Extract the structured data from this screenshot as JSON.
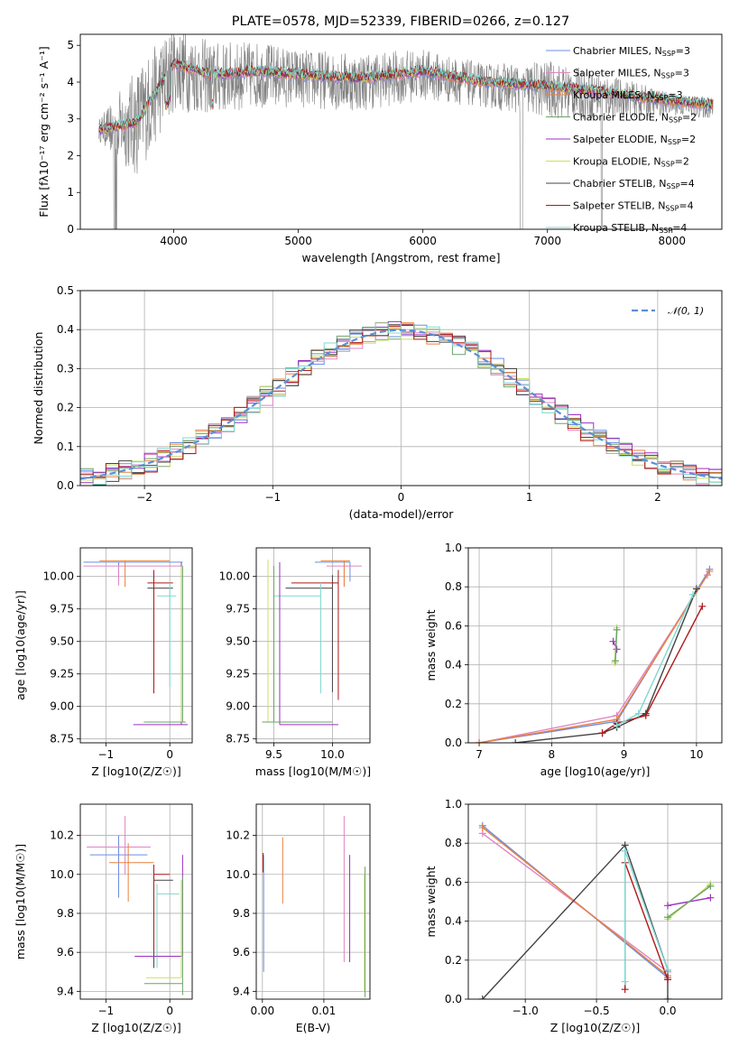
{
  "figure_title": "PLATE=0578, MJD=52339, FIBERID=0266, z=0.127",
  "colors": {
    "Chabrier MILES": "#6b8de3",
    "Salpeter MILES": "#e085c2",
    "Kroupa MILES": "#e8823c",
    "Chabrier ELODIE": "#6aa36a",
    "Salpeter ELODIE": "#9b30c0",
    "Kroupa ELODIE": "#c9e060",
    "Chabrier STELIB": "#444444",
    "Salpeter STELIB": "#b01818",
    "Kroupa STELIB": "#7fd8d0",
    "data": "#808080",
    "gauss": "#5b8fd6"
  },
  "chart_data": [
    {
      "type": "line",
      "id": "spectrum",
      "xlabel": "wavelength [Angstrom, rest frame]",
      "ylabel": "Flux [fλ10⁻¹⁷ erg cm⁻² s⁻¹ A⁻¹]",
      "xlim": [
        3250,
        8400
      ],
      "ylim": [
        0,
        5.3
      ],
      "xticks": [
        "4000",
        "5000",
        "6000",
        "7000",
        "8000"
      ],
      "yticks": [
        "0",
        "1",
        "2",
        "3",
        "4",
        "5"
      ],
      "legend": [
        "Chabrier MILES, NSSP=3",
        "Salpeter MILES, NSSP=3",
        "Kroupa MILES, NSSP=3",
        "Chabrier ELODIE, NSSP=2",
        "Salpeter ELODIE, NSSP=2",
        "Kroupa ELODIE, NSSP=2",
        "Chabrier STELIB, NSSP=4",
        "Salpeter STELIB, NSSP=4",
        "Kroupa STELIB, NSSP=4"
      ],
      "legend_placement": "upper right",
      "model_continuum": {
        "x": [
          3400,
          3700,
          4000,
          4300,
          4700,
          5000,
          5500,
          6000,
          6500,
          7000,
          7500,
          8000,
          8300
        ],
        "y": [
          2.7,
          2.9,
          4.5,
          4.2,
          4.3,
          4.2,
          4.1,
          4.3,
          4.0,
          3.9,
          3.7,
          3.5,
          3.4
        ]
      },
      "data_spectrum": {
        "x": [
          3400,
          3700,
          4000,
          4300,
          4700,
          5000,
          5500,
          6000,
          6500,
          7000,
          7500,
          8000,
          8300
        ],
        "y": [
          2.7,
          2.9,
          4.4,
          4.1,
          4.2,
          4.1,
          4.0,
          4.2,
          3.9,
          3.8,
          3.6,
          3.4,
          3.3
        ],
        "noise": [
          0.3,
          1.5,
          1.2,
          1.0,
          0.9,
          0.8,
          0.8,
          0.7,
          0.6,
          0.8,
          0.6,
          0.3,
          0.3
        ]
      }
    },
    {
      "type": "line",
      "id": "residuals",
      "xlabel": "(data-model)/error",
      "ylabel": "Normed distribution",
      "xlim": [
        -2.5,
        2.5
      ],
      "ylim": [
        0,
        0.5
      ],
      "xticks": [
        "−2",
        "−1",
        "0",
        "1",
        "2"
      ],
      "yticks": [
        "0.0",
        "0.1",
        "0.2",
        "0.3",
        "0.4",
        "0.5"
      ],
      "grid": true,
      "legend": [
        "𝒩(0, 1)"
      ],
      "legend_placement": "upper right",
      "series": [
        {
          "name": "𝒩(0, 1)",
          "mean": 0,
          "sigma": 1
        }
      ]
    },
    {
      "type": "scatter",
      "id": "age-vs-Z",
      "xlabel": "Z [log10(Z/Z☉)]",
      "ylabel": "age  [log10(age/yr)]",
      "xlim": [
        -1.4,
        0.35
      ],
      "ylim": [
        8.72,
        10.22
      ],
      "xticks": [
        "−1",
        "0"
      ],
      "yticks": [
        "8.75",
        "9.00",
        "9.25",
        "9.50",
        "9.75",
        "10.00"
      ],
      "grid": true,
      "points": [
        {
          "model": "Chabrier MILES",
          "x": -0.8,
          "y": 10.11,
          "xerr": [
            0.55,
            1.0
          ],
          "yerr": [
            0.15,
            0.0
          ]
        },
        {
          "model": "Salpeter MILES",
          "x": -0.8,
          "y": 10.08,
          "xerr": [
            0.55,
            1.0
          ],
          "yerr": [
            0.15,
            0.0
          ]
        },
        {
          "model": "Kroupa MILES",
          "x": -0.7,
          "y": 10.12,
          "xerr": [
            0.4,
            0.7
          ],
          "yerr": [
            0.2,
            0.0
          ]
        },
        {
          "model": "Chabrier STELIB",
          "x": -0.25,
          "y": 9.91,
          "xerr": [
            0.1,
            0.3
          ],
          "yerr": [
            0.8,
            0.1
          ]
        },
        {
          "model": "Salpeter STELIB",
          "x": -0.25,
          "y": 9.95,
          "xerr": [
            0.1,
            0.3
          ],
          "yerr": [
            0.85,
            0.1
          ]
        },
        {
          "model": "Kroupa STELIB",
          "x": 0.0,
          "y": 9.85,
          "xerr": [
            0.2,
            0.1
          ],
          "yerr": [
            0.7,
            0.1
          ]
        },
        {
          "model": "Salpeter ELODIE",
          "x": 0.18,
          "y": 8.86,
          "xerr": [
            0.75,
            0.1
          ],
          "yerr": [
            0.0,
            1.25
          ]
        },
        {
          "model": "Kroupa ELODIE",
          "x": 0.18,
          "y": 8.88,
          "xerr": [
            0.6,
            0.05
          ],
          "yerr": [
            0.0,
            1.2
          ]
        },
        {
          "model": "Chabrier ELODIE",
          "x": 0.2,
          "y": 8.88,
          "xerr": [
            0.6,
            0.05
          ],
          "yerr": [
            0.0,
            1.2
          ]
        }
      ]
    },
    {
      "type": "scatter",
      "id": "age-vs-mass",
      "xlabel": "mass [log10(M/M☉)]",
      "ylabel": "",
      "xlim": [
        9.35,
        10.32
      ],
      "ylim": [
        8.72,
        10.22
      ],
      "xticks": [
        "9.5",
        "10.0"
      ],
      "yticks": [
        "8.75",
        "9.00",
        "9.25",
        "9.50",
        "9.75",
        "10.00"
      ],
      "grid": true,
      "points": [
        {
          "model": "Chabrier MILES",
          "x": 10.15,
          "y": 10.11,
          "xerr": [
            0.3,
            0.0
          ],
          "yerr": [
            0.15,
            0.0
          ]
        },
        {
          "model": "Salpeter MILES",
          "x": 10.1,
          "y": 10.08,
          "xerr": [
            0.15,
            0.15
          ],
          "yerr": [
            0.15,
            0.0
          ]
        },
        {
          "model": "Kroupa MILES",
          "x": 10.1,
          "y": 10.12,
          "xerr": [
            0.2,
            0.05
          ],
          "yerr": [
            0.2,
            0.0
          ]
        },
        {
          "model": "Chabrier STELIB",
          "x": 10.0,
          "y": 9.91,
          "xerr": [
            0.4,
            0.0
          ],
          "yerr": [
            0.8,
            0.1
          ]
        },
        {
          "model": "Salpeter STELIB",
          "x": 10.05,
          "y": 9.95,
          "xerr": [
            0.4,
            0.0
          ],
          "yerr": [
            0.9,
            0.1
          ]
        },
        {
          "model": "Kroupa STELIB",
          "x": 9.9,
          "y": 9.85,
          "xerr": [
            0.4,
            0.0
          ],
          "yerr": [
            0.75,
            0.1
          ]
        },
        {
          "model": "Salpeter ELODIE",
          "x": 9.55,
          "y": 8.86,
          "xerr": [
            0.0,
            0.5
          ],
          "yerr": [
            0.0,
            1.25
          ]
        },
        {
          "model": "Kroupa ELODIE",
          "x": 9.45,
          "y": 8.88,
          "xerr": [
            0.05,
            0.5
          ],
          "yerr": [
            0.0,
            1.25
          ]
        },
        {
          "model": "Chabrier ELODIE",
          "x": 9.5,
          "y": 8.88,
          "xerr": [
            0.1,
            0.5
          ],
          "yerr": [
            0.0,
            1.2
          ]
        }
      ]
    },
    {
      "type": "line",
      "id": "massweight-vs-age",
      "xlabel": "age  [log10(age/yr)]",
      "ylabel": "mass weight",
      "xlim": [
        6.85,
        10.35
      ],
      "ylim": [
        0,
        1.0
      ],
      "xticks": [
        "7",
        "8",
        "9",
        "10"
      ],
      "yticks": [
        "0.0",
        "0.2",
        "0.4",
        "0.6",
        "0.8",
        "1.0"
      ],
      "grid": true,
      "series": [
        {
          "model": "Chabrier MILES",
          "x": [
            7.0,
            8.9,
            10.18
          ],
          "y": [
            0.0,
            0.11,
            0.89
          ]
        },
        {
          "model": "Salpeter MILES",
          "x": [
            7.0,
            8.9,
            10.15
          ],
          "y": [
            0.0,
            0.14,
            0.86
          ]
        },
        {
          "model": "Kroupa MILES",
          "x": [
            7.0,
            8.9,
            10.18
          ],
          "y": [
            0.0,
            0.12,
            0.88
          ]
        },
        {
          "model": "Chabrier STELIB",
          "x": [
            7.5,
            8.7,
            8.9,
            9.3,
            10.0
          ],
          "y": [
            0.0,
            0.05,
            0.08,
            0.15,
            0.79
          ]
        },
        {
          "model": "Salpeter STELIB",
          "x": [
            8.7,
            8.9,
            9.3,
            10.08
          ],
          "y": [
            0.05,
            0.1,
            0.14,
            0.7
          ]
        },
        {
          "model": "Kroupa STELIB",
          "x": [
            8.9,
            9.2,
            9.95
          ],
          "y": [
            0.09,
            0.15,
            0.76
          ]
        },
        {
          "model": "Salpeter ELODIE",
          "x": [
            8.85,
            8.9
          ],
          "y": [
            0.52,
            0.48
          ]
        },
        {
          "model": "Kroupa ELODIE",
          "x": [
            8.87,
            8.9
          ],
          "y": [
            0.41,
            0.59
          ]
        },
        {
          "model": "Chabrier ELODIE",
          "x": [
            8.88,
            8.9
          ],
          "y": [
            0.42,
            0.58
          ]
        }
      ]
    },
    {
      "type": "scatter",
      "id": "mass-vs-Z",
      "xlabel": "Z [log10(Z/Z☉)]",
      "ylabel": "mass [log10(M/M☉)]",
      "xlim": [
        -1.4,
        0.35
      ],
      "ylim": [
        9.36,
        10.36
      ],
      "xticks": [
        "−1",
        "0"
      ],
      "yticks": [
        "9.4",
        "9.6",
        "9.8",
        "10.0",
        "10.2"
      ],
      "grid": true,
      "points": [
        {
          "model": "Chabrier MILES",
          "x": -0.8,
          "y": 10.1,
          "xerr": [
            0.45,
            0.45
          ],
          "yerr": [
            0.22,
            0.1
          ]
        },
        {
          "model": "Salpeter MILES",
          "x": -0.7,
          "y": 10.14,
          "xerr": [
            0.6,
            0.4
          ],
          "yerr": [
            0.14,
            0.16
          ]
        },
        {
          "model": "Kroupa MILES",
          "x": -0.65,
          "y": 10.06,
          "xerr": [
            0.3,
            0.4
          ],
          "yerr": [
            0.2,
            0.1
          ]
        },
        {
          "model": "Chabrier STELIB",
          "x": -0.25,
          "y": 9.97,
          "xerr": [
            0.0,
            0.3
          ],
          "yerr": [
            0.45,
            0.05
          ]
        },
        {
          "model": "Salpeter STELIB",
          "x": -0.25,
          "y": 10.0,
          "xerr": [
            0.0,
            0.25
          ],
          "yerr": [
            0.4,
            0.05
          ]
        },
        {
          "model": "Kroupa STELIB",
          "x": -0.2,
          "y": 9.9,
          "xerr": [
            0.0,
            0.35
          ],
          "yerr": [
            0.38,
            0.05
          ]
        },
        {
          "model": "Salpeter ELODIE",
          "x": 0.2,
          "y": 9.58,
          "xerr": [
            0.75,
            0.0
          ],
          "yerr": [
            0.0,
            0.52
          ]
        },
        {
          "model": "Kroupa ELODIE",
          "x": 0.18,
          "y": 9.47,
          "xerr": [
            0.55,
            0.0
          ],
          "yerr": [
            0.0,
            0.5
          ]
        },
        {
          "model": "Chabrier ELODIE",
          "x": 0.2,
          "y": 9.44,
          "xerr": [
            0.6,
            0.0
          ],
          "yerr": [
            0.06,
            0.55
          ]
        }
      ]
    },
    {
      "type": "scatter",
      "id": "mass-vs-EBV",
      "xlabel": "E(B-V)",
      "ylabel": "",
      "xlim": [
        -0.001,
        0.0175
      ],
      "ylim": [
        9.36,
        10.36
      ],
      "xticks": [
        "0.00",
        "0.01"
      ],
      "yticks": [
        "9.4",
        "9.6",
        "9.8",
        "10.0",
        "10.2"
      ],
      "grid": true,
      "points": [
        {
          "model": "Chabrier MILES",
          "x": 0.0002,
          "y": 10.0,
          "yerr": [
            0.5,
            0.1
          ]
        },
        {
          "model": "Salpeter STELIB",
          "x": 0.0001,
          "y": 10.06,
          "yerr": [
            0.05,
            0.05
          ]
        },
        {
          "model": "Kroupa MILES",
          "x": 0.0033,
          "y": 10.0,
          "yerr": [
            0.15,
            0.19
          ]
        },
        {
          "model": "Salpeter ELODIE",
          "x": 0.0142,
          "y": 9.75,
          "yerr": [
            0.2,
            0.35
          ]
        },
        {
          "model": "Salpeter MILES",
          "x": 0.0133,
          "y": 10.1,
          "yerr": [
            0.55,
            0.2
          ]
        },
        {
          "model": "Kroupa ELODIE",
          "x": 0.0166,
          "y": 9.7,
          "yerr": [
            0.3,
            0.3
          ]
        },
        {
          "model": "Chabrier ELODIE",
          "x": 0.0167,
          "y": 9.7,
          "yerr": [
            0.33,
            0.34
          ]
        }
      ]
    },
    {
      "type": "line",
      "id": "massweight-vs-Z",
      "xlabel": "Z [log10(Z/Z☉)]",
      "ylabel": "mass weight",
      "xlim": [
        -1.4,
        0.38
      ],
      "ylim": [
        0,
        1.0
      ],
      "xticks": [
        "−1.0",
        "−0.5",
        "0.0"
      ],
      "yticks": [
        "0.0",
        "0.2",
        "0.4",
        "0.6",
        "0.8",
        "1.0"
      ],
      "grid": true,
      "series": [
        {
          "model": "Chabrier MILES",
          "x": [
            -1.3,
            0.0
          ],
          "y": [
            0.89,
            0.11
          ]
        },
        {
          "model": "Salpeter MILES",
          "x": [
            -1.3,
            0.0
          ],
          "y": [
            0.85,
            0.14
          ]
        },
        {
          "model": "Kroupa MILES",
          "x": [
            -1.3,
            0.0
          ],
          "y": [
            0.88,
            0.12
          ]
        },
        {
          "model": "Chabrier STELIB",
          "x": [
            -1.3,
            -0.3,
            0.0,
            0.0
          ],
          "y": [
            0.0,
            0.79,
            0.15,
            0.0
          ]
        },
        {
          "model": "Salpeter STELIB",
          "x": [
            -0.3,
            -0.3,
            0.0
          ],
          "y": [
            0.05,
            0.7,
            0.1
          ]
        },
        {
          "model": "Kroupa STELIB",
          "x": [
            -0.3,
            -0.3,
            0.0
          ],
          "y": [
            0.09,
            0.76,
            0.15
          ]
        },
        {
          "model": "Salpeter ELODIE",
          "x": [
            0.0,
            0.3
          ],
          "y": [
            0.48,
            0.52
          ]
        },
        {
          "model": "Kroupa ELODIE",
          "x": [
            0.0,
            0.3
          ],
          "y": [
            0.41,
            0.59
          ]
        },
        {
          "model": "Chabrier ELODIE",
          "x": [
            0.0,
            0.3
          ],
          "y": [
            0.42,
            0.58
          ]
        }
      ]
    }
  ]
}
